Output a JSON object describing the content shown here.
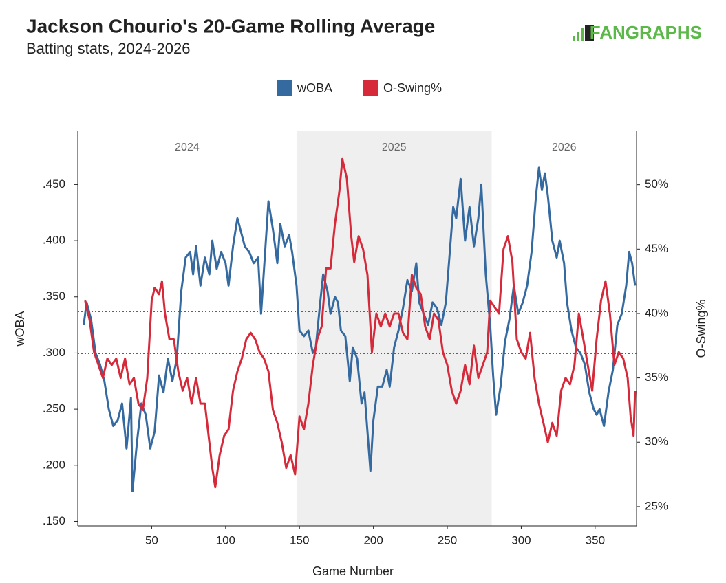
{
  "chart_data": {
    "type": "line",
    "title": "Jackson Chourio's 20-Game Rolling Average",
    "subtitle": "Batting stats, 2024-2026",
    "logo": "FANGRAPHS",
    "x_label": "Game Number",
    "y_label": "wOBA",
    "y2_label": "O-Swing%",
    "xlim": [
      0,
      378
    ],
    "xticks": [
      50,
      100,
      150,
      200,
      250,
      300,
      350
    ],
    "ylim": [
      0.146,
      0.498
    ],
    "yticks": [
      {
        "value": 0.15,
        "label": ".150"
      },
      {
        "value": 0.2,
        "label": ".200"
      },
      {
        "value": 0.25,
        "label": ".250"
      },
      {
        "value": 0.3,
        "label": ".300"
      },
      {
        "value": 0.35,
        "label": ".350"
      },
      {
        "value": 0.4,
        "label": ".400"
      },
      {
        "value": 0.45,
        "label": ".450"
      }
    ],
    "y2lim": [
      23.5,
      54.2
    ],
    "y2ticks": [
      {
        "value": 25,
        "label": "25%"
      },
      {
        "value": 30,
        "label": "30%"
      },
      {
        "value": 35,
        "label": "35%"
      },
      {
        "value": 40,
        "label": "40%"
      },
      {
        "value": 45,
        "label": "45%"
      },
      {
        "value": 50,
        "label": "50%"
      }
    ],
    "seasons": [
      {
        "label": "2024",
        "start": 0,
        "end": 148,
        "shaded": false
      },
      {
        "label": "2025",
        "start": 148,
        "end": 280,
        "shaded": true
      },
      {
        "label": "2026",
        "start": 280,
        "end": 378,
        "shaded": false
      }
    ],
    "reference_lines": [
      {
        "axis": "y",
        "value": 0.337,
        "color": "#356aa0"
      },
      {
        "axis": "y2",
        "value": 36.9,
        "color": "#d6293a"
      }
    ],
    "series": [
      {
        "name": "wOBA",
        "color": "#356aa0",
        "axis": "y",
        "x": [
          4,
          6,
          9,
          12,
          15,
          18,
          21,
          24,
          27,
          30,
          33,
          36,
          37,
          40,
          43,
          46,
          49,
          52,
          55,
          58,
          61,
          64,
          67,
          70,
          73,
          76,
          78,
          80,
          83,
          86,
          89,
          91,
          94,
          97,
          100,
          102,
          105,
          108,
          110,
          113,
          116,
          119,
          122,
          124,
          127,
          129,
          132,
          135,
          137,
          140,
          143,
          145,
          148,
          150,
          153,
          156,
          159,
          161,
          164,
          166,
          169,
          171,
          174,
          176,
          178,
          181,
          184,
          186,
          189,
          192,
          194,
          196,
          198,
          200,
          203,
          206,
          209,
          211,
          214,
          217,
          220,
          223,
          226,
          229,
          231,
          234,
          237,
          240,
          243,
          246,
          249,
          252,
          254,
          256,
          259,
          262,
          265,
          268,
          271,
          273,
          276,
          279,
          281,
          283,
          286,
          289,
          292,
          295,
          298,
          301,
          304,
          307,
          310,
          312,
          314,
          316,
          318,
          321,
          324,
          326,
          329,
          331,
          334,
          337,
          340,
          343,
          346,
          349,
          351,
          353,
          356,
          359,
          362,
          365,
          368,
          371,
          373,
          375,
          377
        ],
        "values": [
          0.325,
          0.345,
          0.33,
          0.3,
          0.29,
          0.275,
          0.25,
          0.235,
          0.24,
          0.255,
          0.215,
          0.26,
          0.177,
          0.22,
          0.255,
          0.245,
          0.215,
          0.23,
          0.28,
          0.265,
          0.295,
          0.275,
          0.295,
          0.355,
          0.385,
          0.39,
          0.37,
          0.395,
          0.36,
          0.385,
          0.37,
          0.4,
          0.375,
          0.39,
          0.38,
          0.36,
          0.395,
          0.42,
          0.41,
          0.395,
          0.39,
          0.38,
          0.385,
          0.335,
          0.395,
          0.435,
          0.41,
          0.38,
          0.415,
          0.395,
          0.405,
          0.39,
          0.36,
          0.32,
          0.315,
          0.32,
          0.3,
          0.305,
          0.345,
          0.37,
          0.355,
          0.335,
          0.35,
          0.345,
          0.32,
          0.315,
          0.275,
          0.305,
          0.295,
          0.255,
          0.265,
          0.23,
          0.195,
          0.24,
          0.27,
          0.27,
          0.285,
          0.27,
          0.305,
          0.32,
          0.34,
          0.365,
          0.355,
          0.38,
          0.345,
          0.335,
          0.325,
          0.345,
          0.34,
          0.325,
          0.345,
          0.395,
          0.43,
          0.42,
          0.455,
          0.4,
          0.43,
          0.395,
          0.42,
          0.45,
          0.37,
          0.325,
          0.28,
          0.245,
          0.27,
          0.31,
          0.33,
          0.36,
          0.335,
          0.345,
          0.36,
          0.39,
          0.44,
          0.465,
          0.445,
          0.46,
          0.44,
          0.4,
          0.385,
          0.4,
          0.38,
          0.345,
          0.32,
          0.305,
          0.3,
          0.29,
          0.265,
          0.25,
          0.245,
          0.25,
          0.235,
          0.265,
          0.285,
          0.325,
          0.335,
          0.36,
          0.39,
          0.38,
          0.36
        ]
      },
      {
        "name": "O-Swing%",
        "color": "#d6293a",
        "axis": "y2",
        "x": [
          5,
          8,
          11,
          14,
          17,
          20,
          23,
          26,
          29,
          32,
          35,
          38,
          41,
          44,
          47,
          50,
          52,
          55,
          57,
          59,
          62,
          65,
          68,
          71,
          74,
          77,
          80,
          83,
          86,
          89,
          91,
          93,
          96,
          99,
          102,
          105,
          108,
          111,
          114,
          117,
          120,
          123,
          126,
          129,
          132,
          135,
          138,
          141,
          144,
          147,
          150,
          153,
          156,
          159,
          162,
          165,
          168,
          171,
          174,
          177,
          179,
          182,
          185,
          187,
          190,
          193,
          196,
          199,
          202,
          205,
          208,
          211,
          214,
          217,
          220,
          223,
          226,
          229,
          232,
          235,
          238,
          241,
          244,
          247,
          250,
          253,
          256,
          259,
          262,
          265,
          268,
          271,
          274,
          277,
          279,
          282,
          285,
          288,
          291,
          294,
          297,
          300,
          303,
          306,
          309,
          312,
          315,
          318,
          321,
          324,
          327,
          330,
          333,
          336,
          339,
          342,
          345,
          348,
          351,
          354,
          357,
          360,
          363,
          366,
          369,
          372,
          374,
          376,
          377
        ],
        "values": [
          41,
          39.5,
          37,
          36,
          35,
          36.5,
          36,
          36.5,
          35,
          36.5,
          34.5,
          35,
          33,
          32.5,
          35,
          41,
          42,
          41.5,
          42.5,
          40,
          38,
          38,
          35.5,
          34,
          35,
          33,
          35,
          33,
          33,
          30,
          28,
          26.5,
          29,
          30.5,
          31,
          34,
          35.5,
          36.5,
          38,
          38.5,
          38,
          37,
          36.5,
          35.5,
          32.5,
          31.5,
          30,
          28,
          29,
          27.5,
          32,
          31,
          33,
          36,
          38,
          39,
          43.5,
          43.5,
          47,
          49.5,
          52,
          50.5,
          46,
          44,
          46,
          45,
          43,
          37,
          40,
          39,
          40,
          39,
          40,
          40,
          38.5,
          38,
          43,
          42,
          41.5,
          39,
          38,
          40,
          39.5,
          37,
          36,
          34,
          33,
          34,
          36,
          34.5,
          37.5,
          35,
          36,
          37,
          41,
          40.5,
          40,
          45,
          46,
          44,
          38,
          37,
          36.5,
          38.5,
          35,
          33,
          31.5,
          30,
          31.5,
          30.5,
          34,
          35,
          34.5,
          36,
          40,
          38,
          36,
          34,
          38,
          41,
          42.5,
          40,
          36,
          37,
          36.5,
          35,
          32,
          30.5,
          34
        ]
      }
    ]
  }
}
